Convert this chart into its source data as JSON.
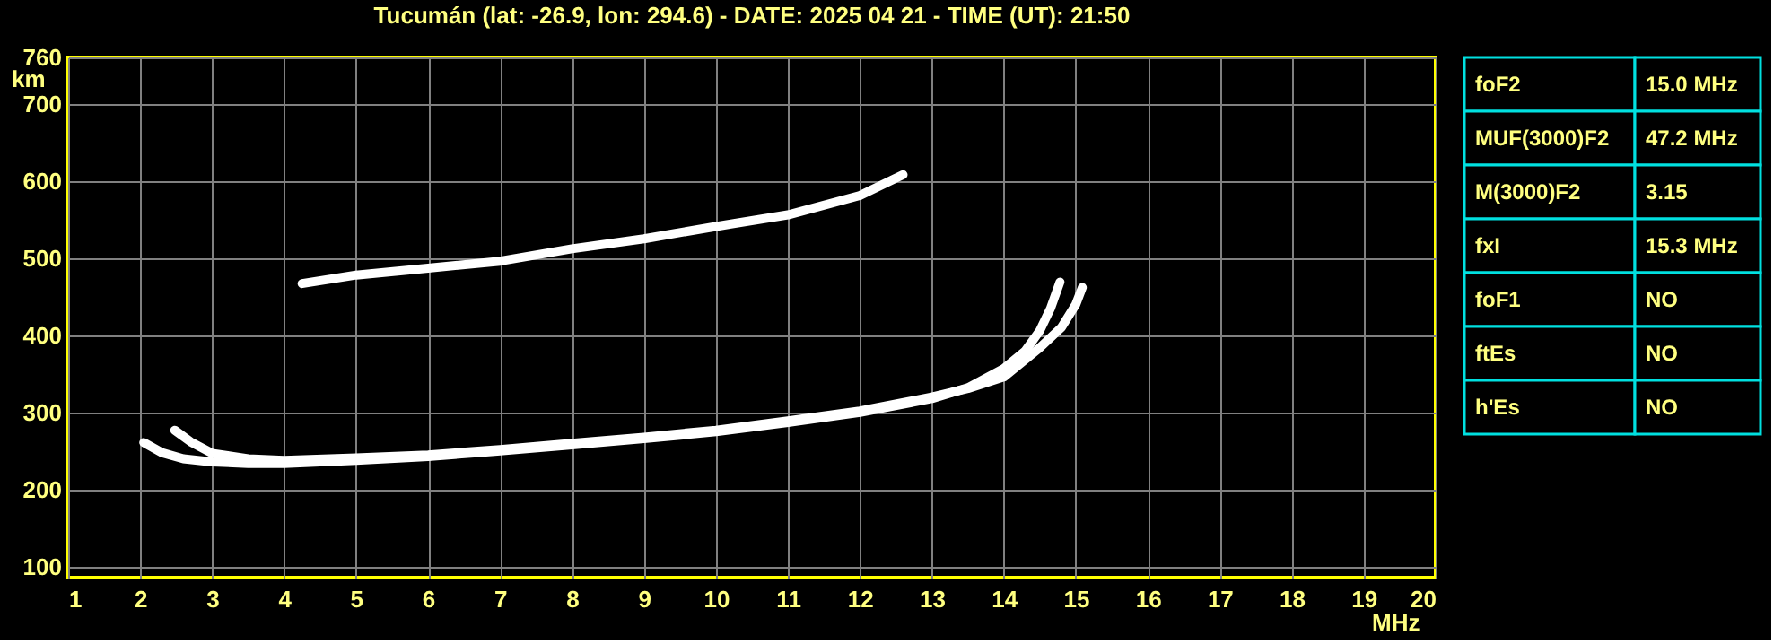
{
  "chart_data": {
    "type": "line",
    "title": "Tucumán (lat: -26.9, lon: 294.6) - DATE: 2025 04 21 - TIME (UT): 21:50",
    "xlabel": "MHz",
    "ylabel": "km",
    "xlim": [
      1,
      20
    ],
    "xticks": [
      1,
      2,
      3,
      4,
      5,
      6,
      7,
      8,
      9,
      10,
      11,
      12,
      13,
      14,
      15,
      16,
      17,
      18,
      19,
      20
    ],
    "ylim": [
      86,
      760
    ],
    "yticks": [
      100,
      200,
      300,
      400,
      500,
      600,
      700,
      760
    ],
    "grid": true,
    "marker": "none",
    "line_style": "solid",
    "series": [
      {
        "color": "#ffffff",
        "x": [
          2.05,
          2.3,
          2.6,
          3,
          3.5,
          4,
          5,
          6,
          7,
          8,
          9,
          10,
          11,
          12,
          13,
          13.5,
          14,
          14.3,
          14.5,
          14.65,
          14.78
        ],
        "values": [
          261,
          248,
          240,
          236,
          234,
          234,
          238,
          243,
          250,
          258,
          266,
          275,
          287,
          300,
          318,
          332,
          357,
          380,
          406,
          435,
          469
        ]
      },
      {
        "color": "#ffffff",
        "x": [
          2.48,
          2.7,
          3,
          3.5,
          4,
          5,
          6,
          7,
          8,
          9,
          10,
          11,
          12,
          13,
          13.5,
          14,
          14.5,
          14.8,
          15,
          15.09
        ],
        "values": [
          277,
          262,
          247,
          240,
          238,
          241,
          245,
          252,
          260,
          268,
          277,
          289,
          302,
          320,
          331,
          346,
          384,
          410,
          440,
          462
        ]
      },
      {
        "color": "#ffffff",
        "x": [
          4.25,
          5,
          6,
          7,
          8,
          9,
          10,
          11,
          12,
          12.6
        ],
        "values": [
          467,
          478,
          487,
          496,
          512,
          525,
          541,
          556,
          581,
          608
        ]
      }
    ],
    "annotations": [
      "foF2",
      "15.0 MHz",
      "MUF(3000)F2",
      "47.2 MHz",
      "M(3000)F2",
      "3.15",
      "fxI",
      "15.3 MHz",
      "foF1",
      "NO",
      "ftEs",
      "NO",
      "h'Es",
      "NO"
    ]
  }
}
